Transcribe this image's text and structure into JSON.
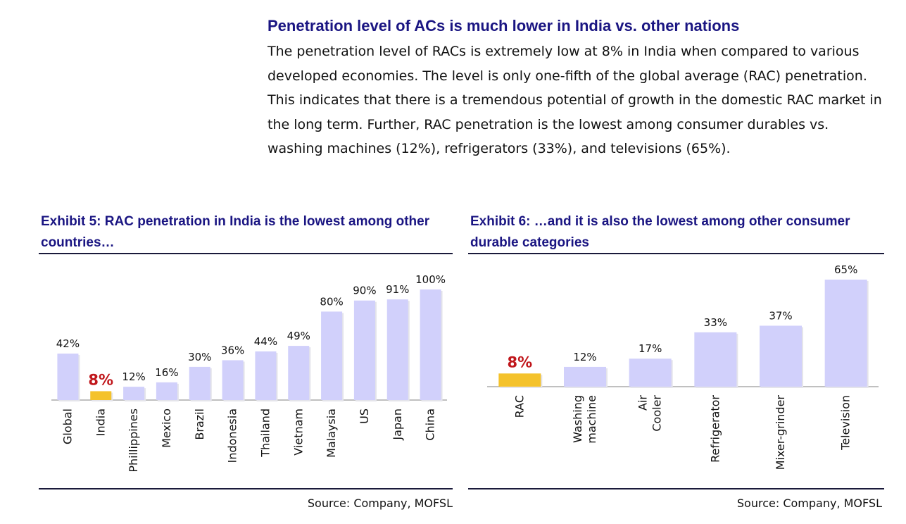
{
  "intro": {
    "title": "Penetration level of ACs is much lower in India vs. other nations",
    "body": "The penetration level of RACs is extremely low at 8% in India when compared to various developed economies. The level is only one-fifth of the global average (RAC) penetration. This indicates that there is a tremendous potential of growth in the domestic RAC market in the long term. Further, RAC penetration is the lowest among consumer durables vs. washing machines (12%), refrigerators (33%), and televisions (65%)."
  },
  "exhibit5": {
    "title": "Exhibit 5: RAC penetration in India is the lowest among other countries…",
    "source": "Source: Company, MOFSL"
  },
  "exhibit6": {
    "title": "Exhibit 6: …and it is also the lowest among other consumer durable categories",
    "source": "Source: Company, MOFSL"
  },
  "colors": {
    "bar": "#d1d0fb",
    "highlight_bar": "#f4c22b",
    "highlight_label": "#c0161b",
    "title": "#1a1582"
  },
  "chart_data": [
    {
      "type": "bar",
      "title": "Exhibit 5: RAC penetration in India is the lowest among other countries…",
      "categories": [
        "Global",
        "India",
        "Phillippines",
        "Mexico",
        "Brazil",
        "Indonesia",
        "Thailand",
        "Vietnam",
        "Malaysia",
        "US",
        "Japan",
        "China"
      ],
      "values": [
        42,
        8,
        12,
        16,
        30,
        36,
        44,
        49,
        80,
        90,
        91,
        100
      ],
      "data_labels": [
        "42%",
        "8%",
        "12%",
        "16%",
        "30%",
        "36%",
        "44%",
        "49%",
        "80%",
        "90%",
        "91%",
        "100%"
      ],
      "highlight": "India",
      "xlabel": "",
      "ylabel": "",
      "ylim": [
        0,
        100
      ]
    },
    {
      "type": "bar",
      "title": "Exhibit 6: …and it is also the lowest among other consumer durable categories",
      "categories": [
        "RAC",
        "Washing machine",
        "Air Cooler",
        "Refrigerator",
        "Mixer-grinder",
        "Television"
      ],
      "values": [
        8,
        12,
        17,
        33,
        37,
        65
      ],
      "data_labels": [
        "8%",
        "12%",
        "17%",
        "33%",
        "37%",
        "65%"
      ],
      "highlight": "RAC",
      "xlabel": "",
      "ylabel": "",
      "ylim": [
        0,
        65
      ]
    }
  ]
}
